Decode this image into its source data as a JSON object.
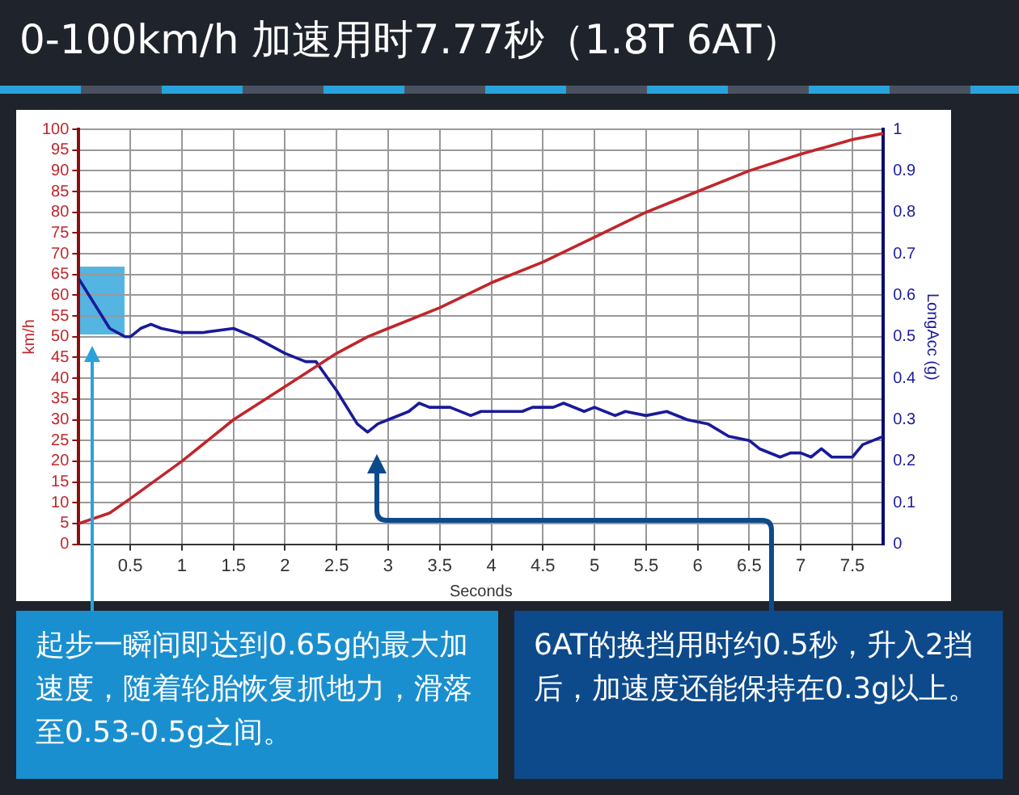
{
  "chart_data": {
    "type": "line",
    "title": "0-100km/h 加速用时7.77秒（1.8T 6AT）",
    "xlabel": "Seconds",
    "ylabel": "km/h",
    "y2label": "LongAcc (g)",
    "xlim": [
      0,
      7.8
    ],
    "xticks": [
      0.5,
      1,
      1.5,
      2,
      2.5,
      3,
      3.5,
      4,
      4.5,
      5,
      5.5,
      6,
      6.5,
      7,
      7.5
    ],
    "ylim": [
      0,
      100
    ],
    "yticks": [
      0,
      5,
      10,
      15,
      20,
      25,
      30,
      35,
      40,
      45,
      50,
      55,
      60,
      65,
      70,
      75,
      80,
      85,
      90,
      95,
      100
    ],
    "y2lim": [
      0,
      1
    ],
    "y2ticks": [
      0,
      0.1,
      0.2,
      0.3,
      0.4,
      0.5,
      0.6,
      0.7,
      0.8,
      0.9,
      1
    ],
    "grid": true,
    "legend": false,
    "marker": "none",
    "line_style": "solid",
    "series": [
      {
        "color": "#c0262b",
        "x": [
          0,
          0.3,
          0.5,
          1,
          1.5,
          2,
          2.5,
          2.8,
          3,
          3.5,
          4,
          4.5,
          5,
          5.5,
          6,
          6.5,
          7,
          7.5,
          7.8
        ],
        "values": [
          5,
          7.5,
          11,
          20,
          30,
          38,
          46,
          50,
          52,
          57,
          63,
          68,
          74,
          80,
          85,
          90,
          94,
          97.5,
          99
        ]
      },
      {
        "color": "#1a1a9a",
        "axis": "y2",
        "x": [
          0,
          0.1,
          0.2,
          0.3,
          0.45,
          0.5,
          0.6,
          0.7,
          0.8,
          1,
          1.2,
          1.5,
          1.7,
          2,
          2.2,
          2.3,
          2.5,
          2.7,
          2.8,
          2.9,
          3,
          3.2,
          3.3,
          3.4,
          3.6,
          3.8,
          3.9,
          4.1,
          4.3,
          4.4,
          4.6,
          4.7,
          4.9,
          5,
          5.2,
          5.3,
          5.5,
          5.7,
          5.9,
          6.1,
          6.3,
          6.5,
          6.6,
          6.8,
          6.9,
          7,
          7.1,
          7.2,
          7.3,
          7.5,
          7.6,
          7.8
        ],
        "values": [
          0.64,
          0.6,
          0.56,
          0.52,
          0.5,
          0.5,
          0.52,
          0.53,
          0.52,
          0.51,
          0.51,
          0.52,
          0.5,
          0.46,
          0.44,
          0.44,
          0.37,
          0.29,
          0.27,
          0.29,
          0.3,
          0.32,
          0.34,
          0.33,
          0.33,
          0.31,
          0.32,
          0.32,
          0.32,
          0.33,
          0.33,
          0.34,
          0.32,
          0.33,
          0.31,
          0.32,
          0.31,
          0.32,
          0.3,
          0.29,
          0.26,
          0.25,
          0.23,
          0.21,
          0.22,
          0.22,
          0.21,
          0.23,
          0.21,
          0.21,
          0.24,
          0.26
        ]
      }
    ],
    "annotations": [
      "起步一瞬间即达到0.65g的最大加速度，随着轮胎恢复抓地力，滑落至0.53-0.5g之间。",
      "6AT的换挡用时约0.5秒，升入2挡后，加速度还能保持在0.3g以上。"
    ]
  }
}
